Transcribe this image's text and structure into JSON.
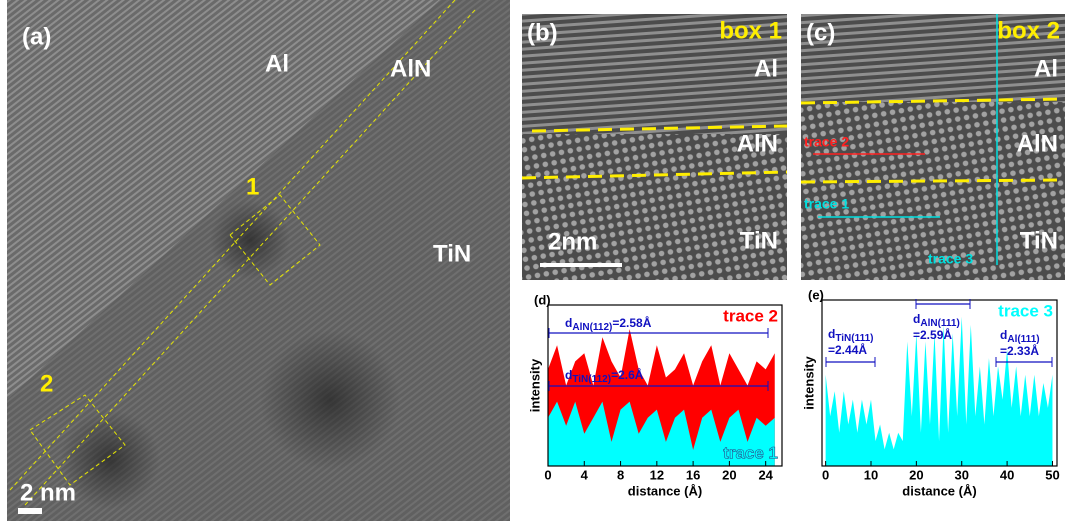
{
  "panels": {
    "a": {
      "label": "(a)",
      "al": "Al",
      "aln": "AlN",
      "tin": "TiN",
      "box1": "1",
      "box2": "2",
      "scale": "2 nm"
    },
    "b": {
      "label": "(b)",
      "box": "box 1",
      "al": "Al",
      "aln": "AlN",
      "tin": "TiN",
      "scale": "2nm"
    },
    "c": {
      "label": "(c)",
      "box": "box 2",
      "al": "Al",
      "aln": "AlN",
      "tin": "TiN",
      "trace2": "trace 2",
      "trace1": "trace 1",
      "trace3": "trace 3"
    }
  },
  "chart_data": [
    {
      "type": "area",
      "label": "(d)",
      "x_label": "distance (Å)",
      "y_label": "intensity",
      "x": [
        0,
        1,
        2,
        3,
        4,
        5,
        6,
        7,
        8,
        9,
        10,
        11,
        12,
        13,
        14,
        15,
        16,
        17,
        18,
        19,
        20,
        21,
        22,
        23,
        24,
        25
      ],
      "xlim": [
        0,
        25.8
      ],
      "xticks": [
        0,
        4,
        8,
        12,
        16,
        20,
        24
      ],
      "ylim": [
        0,
        10
      ],
      "series": [
        {
          "name": "trace 2",
          "color": "#ff0000",
          "values": [
            6,
            7.5,
            5,
            6.5,
            7,
            5,
            8,
            6.5,
            5.5,
            8.5,
            6,
            5,
            7.5,
            5.5,
            6,
            7,
            5,
            6.5,
            7.5,
            5,
            7,
            6,
            5,
            6.5,
            6,
            7
          ]
        },
        {
          "name": "trace 1",
          "color": "#00ffff",
          "values": [
            3,
            4,
            2.5,
            4,
            2,
            3,
            4,
            1.5,
            3.5,
            4,
            2,
            3,
            3.5,
            1.5,
            3,
            3.5,
            1,
            3,
            3.5,
            1.5,
            3,
            3.5,
            1.5,
            3,
            2.5,
            3
          ]
        }
      ],
      "annotations": [
        {
          "d": "d",
          "sub": "AlN(112)",
          "text": "=2.58Å"
        },
        {
          "d": "d",
          "sub": "TiN(112)",
          "text": "=2.6Å"
        }
      ]
    },
    {
      "type": "area",
      "label": "(e)",
      "x_label": "distance (Å)",
      "y_label": "intensity",
      "x": [
        0,
        1,
        2,
        3,
        4,
        5,
        6,
        7,
        8,
        9,
        10,
        11,
        12,
        13,
        14,
        15,
        16,
        17,
        18,
        19,
        20,
        21,
        22,
        23,
        24,
        25,
        26,
        27,
        28,
        29,
        30,
        31,
        32,
        33,
        34,
        35,
        36,
        37,
        38,
        39,
        40,
        41,
        42,
        43,
        44,
        45,
        46,
        47,
        48,
        49,
        50
      ],
      "xlim": [
        -0.8,
        51
      ],
      "xticks": [
        0,
        10,
        20,
        30,
        40,
        50
      ],
      "ylim": [
        0,
        10
      ],
      "series": [
        {
          "name": "trace 3",
          "color": "#00ffff",
          "values": [
            5.5,
            3,
            4.5,
            2,
            4.5,
            2.5,
            4,
            2,
            4,
            2.5,
            4,
            1.5,
            2.5,
            1,
            2,
            1,
            2,
            1.5,
            7.5,
            3,
            8,
            2,
            7.5,
            2.5,
            8,
            1.5,
            8.5,
            2,
            8,
            3,
            9,
            2.5,
            8.5,
            3,
            6,
            2.5,
            6.5,
            3,
            6,
            4,
            7,
            3.5,
            6,
            3,
            5.5,
            3,
            5.5,
            3,
            5,
            3.5,
            5.5
          ]
        }
      ],
      "annotations": [
        {
          "d": "d",
          "sub": "TiN(111)",
          "text": "=2.44Å"
        },
        {
          "d": "d",
          "sub": "AlN(111)",
          "text": "=2.59Å"
        },
        {
          "d": "d",
          "sub": "Al(111)",
          "text": "=2.33Å"
        }
      ]
    }
  ]
}
